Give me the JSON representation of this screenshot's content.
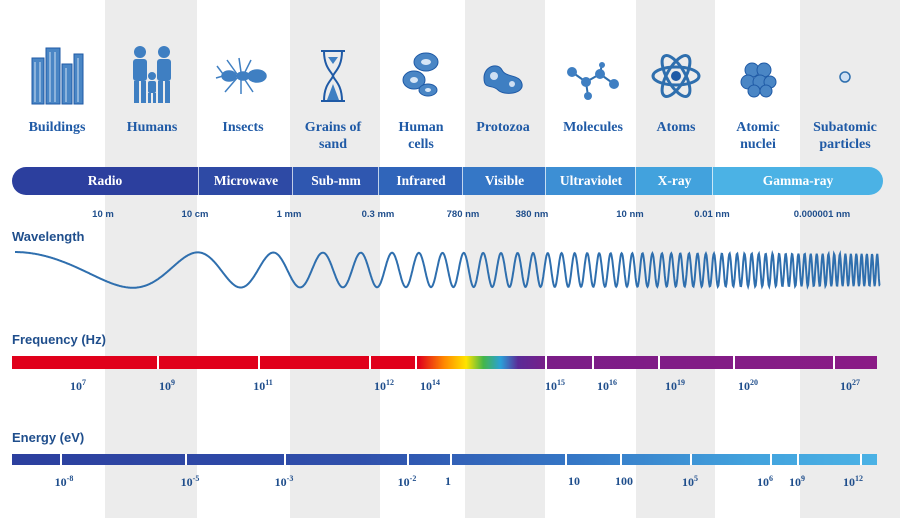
{
  "objects": [
    {
      "name": "Buildings",
      "icon": "buildings-icon"
    },
    {
      "name": "Humans",
      "icon": "humans-icon"
    },
    {
      "name": "Insects",
      "icon": "insect-icon"
    },
    {
      "name": "Grains of\nsand",
      "icon": "hourglass-icon"
    },
    {
      "name": "Human\ncells",
      "icon": "cells-icon"
    },
    {
      "name": "Protozoa",
      "icon": "protozoa-icon"
    },
    {
      "name": "Molecules",
      "icon": "molecule-icon"
    },
    {
      "name": "Atoms",
      "icon": "atom-icon"
    },
    {
      "name": "Atomic\nnuclei",
      "icon": "nucleus-icon"
    },
    {
      "name": "Subatomic\nparticles",
      "icon": "particle-icon"
    }
  ],
  "spectrum": [
    {
      "name": "Radio",
      "color": "#2c3f9e"
    },
    {
      "name": "Microwave",
      "color": "#2e4aa5"
    },
    {
      "name": "Sub-mm",
      "color": "#2f57b0"
    },
    {
      "name": "Infrared",
      "color": "#3065ba"
    },
    {
      "name": "Visible",
      "color": "#3577c6"
    },
    {
      "name": "Ultraviolet",
      "color": "#3d8fd4"
    },
    {
      "name": "X-ray",
      "color": "#42a2dd"
    },
    {
      "name": "Gamma-ray",
      "color": "#4bb2e5"
    }
  ],
  "wavelengths": [
    "10 m",
    "10 cm",
    "1 mm",
    "0.3 mm",
    "780 nm",
    "380 nm",
    "10 nm",
    "0.01 nm",
    "0.000001 nm"
  ],
  "wavelength_title": "Wavelength",
  "frequency_title": "Frequency (Hz)",
  "frequency_ticks": [
    {
      "base": "10",
      "exp": "7"
    },
    {
      "base": "10",
      "exp": "9"
    },
    {
      "base": "10",
      "exp": "11"
    },
    {
      "base": "10",
      "exp": "12"
    },
    {
      "base": "10",
      "exp": "14"
    },
    {
      "base": "10",
      "exp": "15"
    },
    {
      "base": "10",
      "exp": "16"
    },
    {
      "base": "10",
      "exp": "19"
    },
    {
      "base": "10",
      "exp": "20"
    },
    {
      "base": "10",
      "exp": "27"
    }
  ],
  "energy_title": "Energy (eV)",
  "energy_ticks": [
    {
      "base": "10",
      "exp": "-8"
    },
    {
      "base": "10",
      "exp": "-5"
    },
    {
      "base": "10",
      "exp": "-3"
    },
    {
      "base": "10",
      "exp": "-2"
    },
    {
      "base": "1",
      "exp": ""
    },
    {
      "base": "10",
      "exp": ""
    },
    {
      "base": "100",
      "exp": ""
    },
    {
      "base": "10",
      "exp": "5"
    },
    {
      "base": "10",
      "exp": "6"
    },
    {
      "base": "10",
      "exp": "9"
    },
    {
      "base": "10",
      "exp": "12"
    }
  ],
  "colors": {
    "text": "#1f4e8c",
    "label": "#1f5aa6",
    "band": "#ececec",
    "wave": "#2f6fae"
  }
}
